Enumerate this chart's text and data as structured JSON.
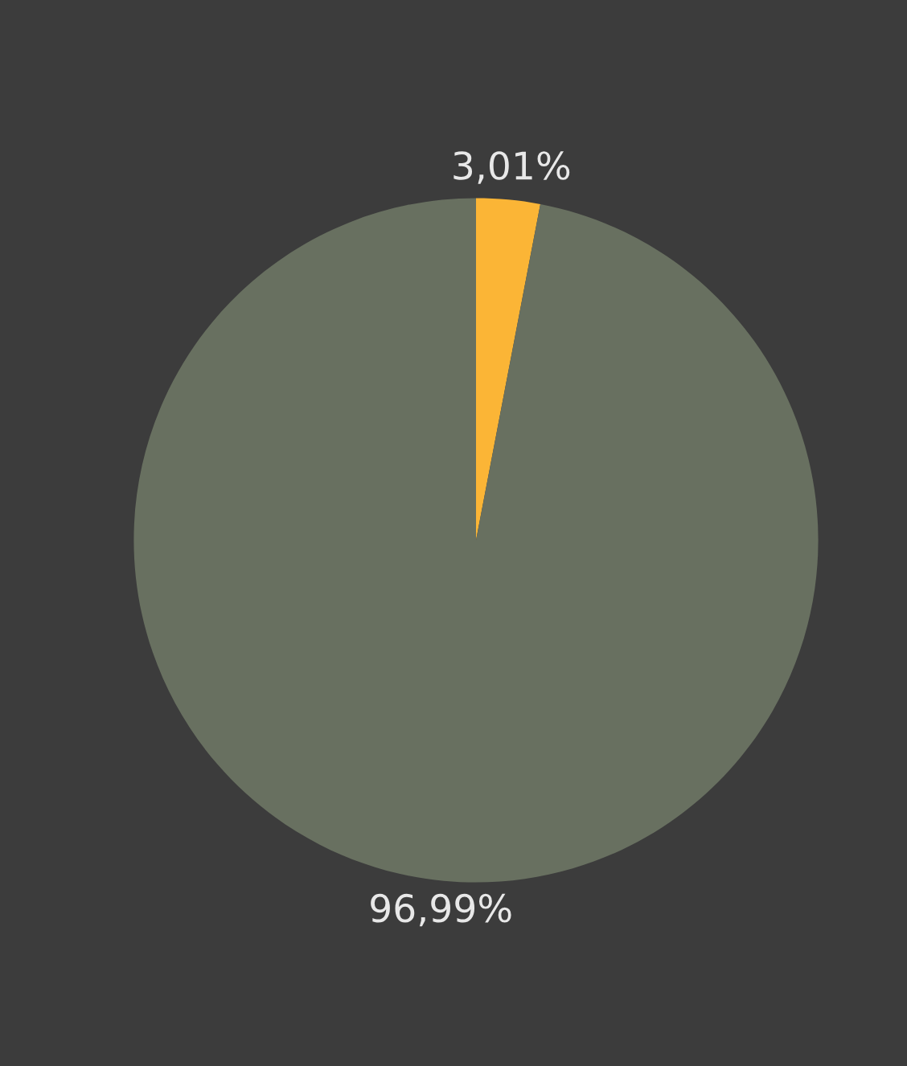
{
  "chart_data": {
    "type": "pie",
    "categories": [
      null,
      null
    ],
    "values": [
      3.01,
      96.99
    ],
    "colors": [
      "#fbb536",
      "#687060"
    ],
    "value_labels": [
      "3,01%",
      "96,99%"
    ]
  }
}
